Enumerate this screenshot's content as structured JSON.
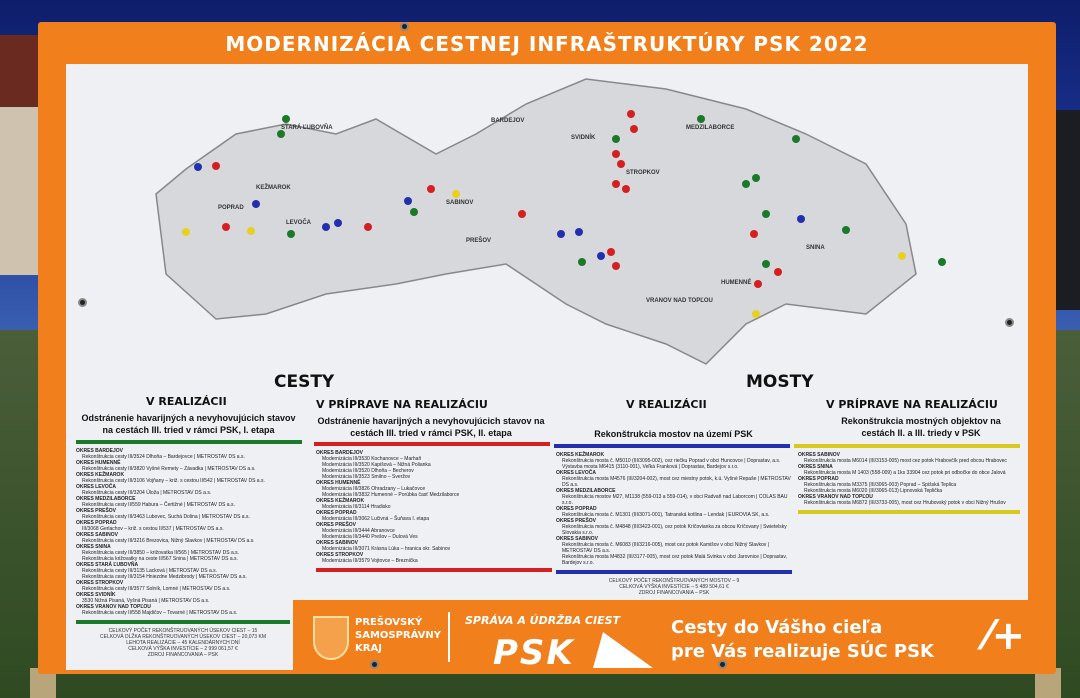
{
  "board": {
    "title": "MODERNIZÁCIA CESTNEJ INFRAŠTRUKTÚRY PSK 2022",
    "map": {
      "districts": [
        "STARÁ ĽUBOVŇA",
        "KEŽMAROK",
        "POPRAD",
        "LEVOČA",
        "SABINOV",
        "BARDEJOV",
        "SVIDNÍK",
        "STROPKOV",
        "MEDZILABORCE",
        "PREŠOV",
        "VRANOV NAD TOPĽOU",
        "HUMENNÉ",
        "SNINA"
      ],
      "marker_colors": {
        "cesty_realizacia": "#1a7a2a",
        "cesty_priprava": "#d42020",
        "mosty_realizacia": "#2230b0",
        "mosty_priprava": "#e8d020"
      }
    },
    "cesty": {
      "heading": "CESTY",
      "realizacia": {
        "status": "V REALIZÁCII",
        "subtitle": "Odstránenie havarijných a nevyhovujúcich stavov na cestách III. tried v rámci PSK, I. etapa",
        "items": [
          {
            "d": "Okres Bardejov",
            "i": [
              "Rekonštrukcia cesty III/3524 Dlhoňa – Bardejovce | METROSTAV DS a.s."
            ]
          },
          {
            "d": "Okres Humenné",
            "i": [
              "Rekonštrukcia cesty III/3820 Vyšné Remety – Závadka | METROSTAV DS a.s."
            ]
          },
          {
            "d": "Okres Kežmarok",
            "i": [
              "Rekonštrukcia cesty III/3106 Vojňany – križ. s cestou II/542 | METROSTAV DS a.s."
            ]
          },
          {
            "d": "Okres Levoča",
            "i": [
              "Rekonštrukcia cesty III/3204 Úloža | METROSTAV DS a.s."
            ]
          },
          {
            "d": "Okres Medzilaborce",
            "i": [
              "Rekonštrukcia cesty II/559 Habura – Čertižné | METROSTAV DS a.s."
            ]
          },
          {
            "d": "Okres Prešov",
            "i": [
              "Rekonštrukcia cesty III/3463 Lubovec, Suchá Dolina | METROSTAV DS a.s."
            ]
          },
          {
            "d": "Okres Poprad",
            "i": [
              "III/3068 Gerlachov – križ. s cestou II/537 | METROSTAV DS a.s."
            ]
          },
          {
            "d": "Okres Sabinov",
            "i": [
              "Rekonštrukcia cesty III/3216 Brezovica, Nižný Slavkov | METROSTAV DS a.s."
            ]
          },
          {
            "d": "Okres Snina",
            "i": [
              "Rekonštrukcia cesty III/3850 – križovatka II/565 | METROSTAV DS a.s.",
              "Rekonštrukcia križovatky na ceste II/567 Snina | METROSTAV DS a.s."
            ]
          },
          {
            "d": "Okres Stará Ľubovňa",
            "i": [
              "Rekonštrukcia cesty III/3135 Lacková | METROSTAV DS a.s.",
              "Rekonštrukcia cesty III/3154 Hniezdne Medzibrody | METROSTAV DS a.s."
            ]
          },
          {
            "d": "Okres Stropkov",
            "i": [
              "Rekonštrukcia cesty III/3577 Solník, Lomné | METROSTAV DS a.s."
            ]
          },
          {
            "d": "Okres Svidník",
            "i": [
              "3530 Nižná Pisaná, Vyšná Pisaná | METROSTAV DS a.s."
            ]
          },
          {
            "d": "Okres Vranov nad Topľou",
            "i": [
              "Rekonštrukcia cesty II/558 Majdičov – Tovarné | METROSTAV DS a.s."
            ]
          }
        ],
        "summary": [
          "Celkový počet rekonštruovaných úsekov ciest – 15",
          "Celková dĺžka rekonštruovaných úsekov ciest – 20,073 km",
          "Lehota realizácie – 45 kalendárnych dní",
          "Celková výška investície – 2 999 061,57 €",
          "Zdroj financovania – PSK"
        ]
      },
      "priprava": {
        "status": "V PRÍPRAVE NA REALIZÁCIU",
        "subtitle": "Odstránenie havarijných a nevyhovujúcich stavov na cestách III. tried v rámci PSK, II. etapa",
        "items": [
          {
            "d": "Okres Bardejov",
            "i": [
              "Modernizácia III/3530 Kochanovce – Marhaň",
              "Modernizácia III/3520 Kapišová – Nižná Polianka",
              "Modernizácia III/3520 Dlhoňa – Becherov",
              "Modernizácia III/3523 Smilno – Sveržov"
            ]
          },
          {
            "d": "Okres Humenné",
            "i": [
              "Modernizácia III/3826 Ohradzany – Lukačovce",
              "Modernizácia III/3832 Humenné – Porúbka časť Medzilaborce"
            ]
          },
          {
            "d": "Okres Kežmarok",
            "i": [
              "Modernizácia III/3114 Hradisko"
            ]
          },
          {
            "d": "Okres Poprad",
            "i": [
              "Modernizácia III/3062 Lučivná – Šuňava I. etapa"
            ]
          },
          {
            "d": "Okres Prešov",
            "i": [
              "Modernizácia III/3444 Abranovce",
              "Modernizácia III/3440 Prešov – Dulová Ves"
            ]
          },
          {
            "d": "Okres Sabinov",
            "i": [
              "Modernizácia III/3071 Krásna Lúka – hranica okr. Sabinov"
            ]
          },
          {
            "d": "Okres Stropkov",
            "i": [
              "Modernizácia III/3579 Vojtovce – Breznička"
            ]
          }
        ]
      }
    },
    "mosty": {
      "heading": "MOSTY",
      "realizacia": {
        "status": "V REALIZÁCII",
        "subtitle": "Rekonštrukcia mostov na území PSK",
        "items": [
          {
            "d": "Okres Kežmarok",
            "i": [
              "Rekonštrukcia mosta č. M5010 (III/3095-002), cez riečku Poprad v obci Huncovce | Doprastav, a.s.",
              "Výstavba mosta M6415 (3110-001), Veľká Franková | Doprastav, Bardejov s.r.o."
            ]
          },
          {
            "d": "Okres Levoča",
            "i": [
              "Rekonštrukcia mosta M4576 (III/3204-002), most cez miestny potok, k.ú. Vyšné Repaše | METROSTAV DS a.s."
            ]
          },
          {
            "d": "Okres Medzilaborce",
            "i": [
              "Rekonštrukcia mostov M27, M1138 (559-013 a 559-014), v obci Radvaň nad Laborcom | COLAS BAU s.r.o."
            ]
          },
          {
            "d": "Okres Poprad",
            "i": [
              "Rekonštrukcia mosta č. M1301 (III/3071-001), Tatranská kotlina – Lendak | EUROVIA SK, a.s."
            ]
          },
          {
            "d": "Okres Prešov",
            "i": [
              "Rekonštrukcia mosta č. M4848 (III/3423-001), cez potok Kríčovianka za obcou Kríčovany | Swietelsky Slovakia s.r.o."
            ]
          },
          {
            "d": "Okres Sabinov",
            "i": [
              "Rekonštrukcia mosta č. M6083 (III/3216-005), most cez potok Kamišov v obci Nižný Slavkov | METROSTAV DS a.s.",
              "Rekonštrukcia mosta M4832 (III/3177-005), most cez potok Malá Svinka v obci Jarovnice | Doprastav, Bardejov s.r.o."
            ]
          }
        ],
        "summary": [
          "Celkový počet rekonštruovaných mostov – 9",
          "Celková výška investície – 5 489 504,61 €",
          "Zdroj financovania – PSK"
        ]
      },
      "priprava": {
        "status": "V PRÍPRAVE NA REALIZÁCIU",
        "subtitle": "Rekonštrukcia mostných objektov na cestách II. a III. triedy v PSK",
        "items": [
          {
            "d": "Okres Sabinov",
            "i": [
              "Rekonštrukcia mosta M6014 (III/3153-005) most cez potok Hrabovčík pred obcou Hrabovec"
            ]
          },
          {
            "d": "Okres Snina",
            "i": [
              "Rekonštrukcia mosta M 1403 (558-009) a 1ks 33904 cez potok pri odbočke do obce Jalová"
            ]
          },
          {
            "d": "Okres Poprad",
            "i": [
              "Rekonštrukcia mosta M3375 (III/3065-003) Poprad – Spišská Teplica",
              "Rekonštrukcia mosta M6020 (III/3065-013) Lipnovská Teplička"
            ]
          },
          {
            "d": "Okres Vranov nad Topľou",
            "i": [
              "Rekonštrukcia mosta M6872 (III/3733-005), most cez Hrubovský potok v obci Nižný Hrušov"
            ]
          }
        ]
      }
    },
    "footer": {
      "psk_org": [
        "PREŠOVSKÝ",
        "SAMOSPRÁVNY",
        "KRAJ"
      ],
      "suc_top": "SPRÁVA A ÚDRŽBA CIEST",
      "suc_logo": "PSK",
      "slogan": [
        "Cesty do Vášho cieľa",
        "pre Vás realizuje SÚC PSK"
      ],
      "brand_color": "#f07f1c"
    }
  }
}
